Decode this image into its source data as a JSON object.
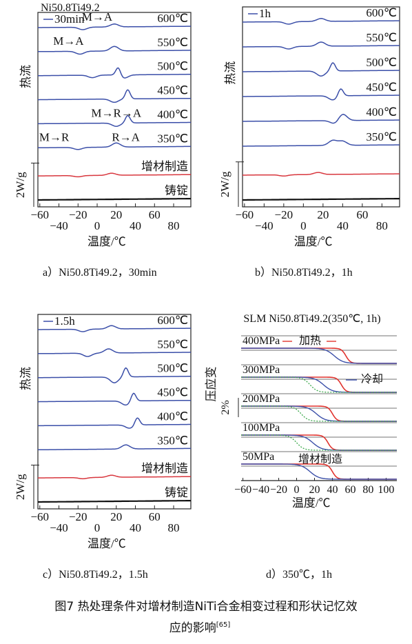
{
  "panels": [
    {
      "id": "a",
      "y_axis_label": "热流",
      "scale_label": "2W/g",
      "x_axis_label": "温度/℃",
      "x_ticks": [
        -60,
        -40,
        -20,
        0,
        20,
        40,
        60,
        80
      ],
      "header_label": "Ni50.8Ti49.2",
      "legend_label": "30min",
      "curves": [
        {
          "label": "600℃",
          "color": "#3a4ea8",
          "peaks": [
            {
              "x": 18,
              "h": 0.35
            },
            {
              "x": -15,
              "h": -0.3
            }
          ]
        },
        {
          "label": "550℃",
          "color": "#3a4ea8",
          "peaks": [
            {
              "x": 18,
              "h": 0.55
            },
            {
              "x": -18,
              "h": -0.35
            }
          ]
        },
        {
          "label": "500℃",
          "color": "#3a4ea8",
          "peaks": [
            {
              "x": 22,
              "h": 1.0
            },
            {
              "x": 28,
              "h": -0.4
            },
            {
              "x": -5,
              "h": -0.3
            }
          ]
        },
        {
          "label": "450℃",
          "color": "#3a4ea8",
          "peaks": [
            {
              "x": 32,
              "h": 1.1
            },
            {
              "x": 18,
              "h": -0.4
            }
          ]
        },
        {
          "label": "400℃",
          "color": "#3a4ea8",
          "peaks": [
            {
              "x": 32,
              "h": 0.9
            },
            {
              "x": 20,
              "h": -0.4
            }
          ]
        },
        {
          "label": "350℃",
          "color": "#3a4ea8",
          "peaks": [
            {
              "x": 20,
              "h": 0.5
            },
            {
              "x": -20,
              "h": -0.25
            }
          ]
        },
        {
          "label": "增材制造",
          "color": "#d8363d",
          "peaks": [
            {
              "x": 15,
              "h": 0.25
            },
            {
              "x": -20,
              "h": -0.15
            }
          ]
        },
        {
          "label": "铸锭",
          "color": "#111111",
          "peaks": []
        }
      ],
      "annotations": [
        {
          "text": "M→A",
          "x": 0,
          "row": 0
        },
        {
          "text": "M→A",
          "x": -30,
          "row": 1
        },
        {
          "text": "M→R→A",
          "x": 20,
          "row": 4
        },
        {
          "text": "M→R",
          "x": -45,
          "row": 5
        },
        {
          "text": "R→A",
          "x": 30,
          "row": 5
        }
      ]
    },
    {
      "id": "b",
      "y_axis_label": "热流",
      "scale_label": "2W/g",
      "x_axis_label": "温度/℃",
      "x_ticks": [
        -60,
        -40,
        -20,
        0,
        20,
        40,
        60,
        80
      ],
      "legend_label": "1h",
      "curves": [
        {
          "label": "600℃",
          "color": "#3a4ea8",
          "peaks": [
            {
              "x": 18,
              "h": 0.35
            },
            {
              "x": -15,
              "h": -0.3
            }
          ]
        },
        {
          "label": "550℃",
          "color": "#3a4ea8",
          "peaks": [
            {
              "x": 18,
              "h": 0.5
            },
            {
              "x": -15,
              "h": -0.3
            }
          ]
        },
        {
          "label": "500℃",
          "color": "#3a4ea8",
          "peaks": [
            {
              "x": 30,
              "h": 1.0
            },
            {
              "x": 18,
              "h": -0.6
            }
          ]
        },
        {
          "label": "450℃",
          "color": "#3a4ea8",
          "peaks": [
            {
              "x": 38,
              "h": 0.9
            },
            {
              "x": 30,
              "h": -0.5
            }
          ]
        },
        {
          "label": "400℃",
          "color": "#3a4ea8",
          "peaks": [
            {
              "x": 40,
              "h": 0.8
            },
            {
              "x": 32,
              "h": -0.4
            }
          ]
        },
        {
          "label": "350℃",
          "color": "#3a4ea8",
          "peaks": [
            {
              "x": 30,
              "h": 0.6
            },
            {
              "x": 40,
              "h": 0.5
            }
          ]
        },
        {
          "label": "",
          "color": "#d8363d",
          "peaks": [
            {
              "x": 15,
              "h": 0.25
            },
            {
              "x": -20,
              "h": -0.15
            }
          ]
        },
        {
          "label": "",
          "color": "#111111",
          "peaks": []
        }
      ]
    },
    {
      "id": "c",
      "y_axis_label": "热流",
      "scale_label": "2W/g",
      "x_axis_label": "温度/℃",
      "x_ticks": [
        -60,
        -40,
        -20,
        0,
        20,
        40,
        60,
        80
      ],
      "legend_label": "1.5h",
      "curves": [
        {
          "label": "600℃",
          "color": "#3a4ea8",
          "peaks": [
            {
              "x": 15,
              "h": 0.4
            },
            {
              "x": -15,
              "h": -0.3
            }
          ]
        },
        {
          "label": "550℃",
          "color": "#3a4ea8",
          "peaks": [
            {
              "x": 12,
              "h": 0.5
            },
            {
              "x": -10,
              "h": -0.4
            }
          ]
        },
        {
          "label": "500℃",
          "color": "#3a4ea8",
          "peaks": [
            {
              "x": 30,
              "h": 1.1
            },
            {
              "x": 18,
              "h": -0.7
            }
          ]
        },
        {
          "label": "450℃",
          "color": "#3a4ea8",
          "peaks": [
            {
              "x": 38,
              "h": 1.0
            },
            {
              "x": 30,
              "h": -0.5
            }
          ]
        },
        {
          "label": "400℃",
          "color": "#3a4ea8",
          "peaks": [
            {
              "x": 42,
              "h": 0.9
            },
            {
              "x": 34,
              "h": -0.4
            }
          ]
        },
        {
          "label": "350℃",
          "color": "#3a4ea8",
          "peaks": [
            {
              "x": 30,
              "h": 0.5
            }
          ]
        },
        {
          "label": "增材制造",
          "color": "#d8363d",
          "peaks": [
            {
              "x": 15,
              "h": 0.25
            },
            {
              "x": -15,
              "h": -0.15
            }
          ]
        },
        {
          "label": "铸锭",
          "color": "#111111",
          "peaks": []
        }
      ]
    }
  ],
  "panel_d": {
    "title": "SLM Ni50.8Ti49.2(350℃, 1h)",
    "y_axis_label": "压应变",
    "scale_label": "2%",
    "x_axis_label": "温度/℃",
    "x_ticks": [
      -60,
      -40,
      -20,
      0,
      20,
      40,
      60,
      80,
      100
    ],
    "stress_labels": [
      "400MPa",
      "300MPa",
      "200MPa",
      "100MPa",
      "50MPa"
    ],
    "heating_label": "加热",
    "cooling_label": "冷却",
    "am_label": "增材制造",
    "transitions": [
      {
        "red": 55,
        "blue": 42,
        "green": null
      },
      {
        "red": 50,
        "blue": 30,
        "green": 15
      },
      {
        "red": 40,
        "blue": 22,
        "green": 5
      },
      {
        "red": 35,
        "blue": 18,
        "green": 0
      },
      {
        "red": 40,
        "blue": 15,
        "green": null
      }
    ]
  },
  "captions": {
    "a": "a）Ni50.8Ti49.2，30min",
    "b": "b）Ni50.8Ti49.2，1h",
    "c": "c）Ni50.8Ti49.2，1.5h",
    "d": "d）350℃，1h",
    "figure_line1": "图7  热处理条件对增材制造NiTi合金相变过程和形状记忆效",
    "figure_line2": "应的影响",
    "figure_ref": "[65]"
  },
  "chart_data": [
    {
      "type": "line",
      "title": "",
      "xlabel": "温度/℃",
      "ylabel": "热流",
      "xlim": [
        -60,
        100
      ],
      "series": [
        {
          "name": "600℃",
          "values": []
        },
        {
          "name": "550℃",
          "values": []
        },
        {
          "name": "500℃",
          "values": []
        },
        {
          "name": "450℃",
          "values": []
        },
        {
          "name": "400℃",
          "values": []
        },
        {
          "name": "350℃",
          "values": []
        },
        {
          "name": "增材制造",
          "values": []
        },
        {
          "name": "铸锭",
          "values": []
        }
      ]
    },
    {
      "type": "line",
      "title": "",
      "xlabel": "温度/℃",
      "ylabel": "热流",
      "xlim": [
        -60,
        100
      ]
    },
    {
      "type": "line",
      "title": "",
      "xlabel": "温度/℃",
      "ylabel": "热流",
      "xlim": [
        -60,
        100
      ]
    },
    {
      "type": "line",
      "title": "SLM Ni50.8Ti49.2(350℃, 1h)",
      "xlabel": "温度/℃",
      "ylabel": "压应变",
      "xlim": [
        -60,
        110
      ]
    }
  ]
}
